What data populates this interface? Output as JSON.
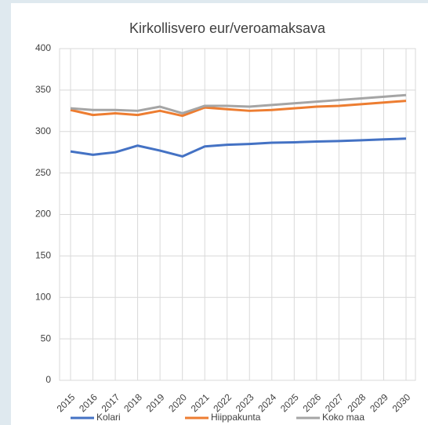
{
  "chart_data": {
    "type": "line",
    "title": "Kirkollisvero eur/veroamaksava",
    "categories": [
      "2015",
      "2016",
      "2017",
      "2018",
      "2019",
      "2020",
      "2021",
      "2022",
      "2023",
      "2024",
      "2025",
      "2026",
      "2027",
      "2028",
      "2029",
      "2030"
    ],
    "series": [
      {
        "name": "Kolari",
        "color": "#4472c4",
        "values": [
          276,
          272,
          275,
          283,
          277,
          270,
          282,
          284,
          285,
          286.5,
          287,
          288,
          288.5,
          289.5,
          290.5,
          291.5
        ]
      },
      {
        "name": "Hiippakunta",
        "color": "#ed7d31",
        "values": [
          326,
          320,
          322,
          320,
          325,
          319,
          329,
          327,
          325,
          326,
          328,
          330,
          331,
          333,
          335,
          337
        ]
      },
      {
        "name": "Koko maa",
        "color": "#a5a5a5",
        "values": [
          328,
          326,
          326,
          325,
          330,
          322,
          331,
          331,
          330,
          332,
          334,
          336,
          338,
          340,
          342,
          344
        ]
      }
    ],
    "ylim": [
      0,
      400
    ],
    "yticks": [
      0,
      50,
      100,
      150,
      200,
      250,
      300,
      350,
      400
    ],
    "grid": true
  }
}
